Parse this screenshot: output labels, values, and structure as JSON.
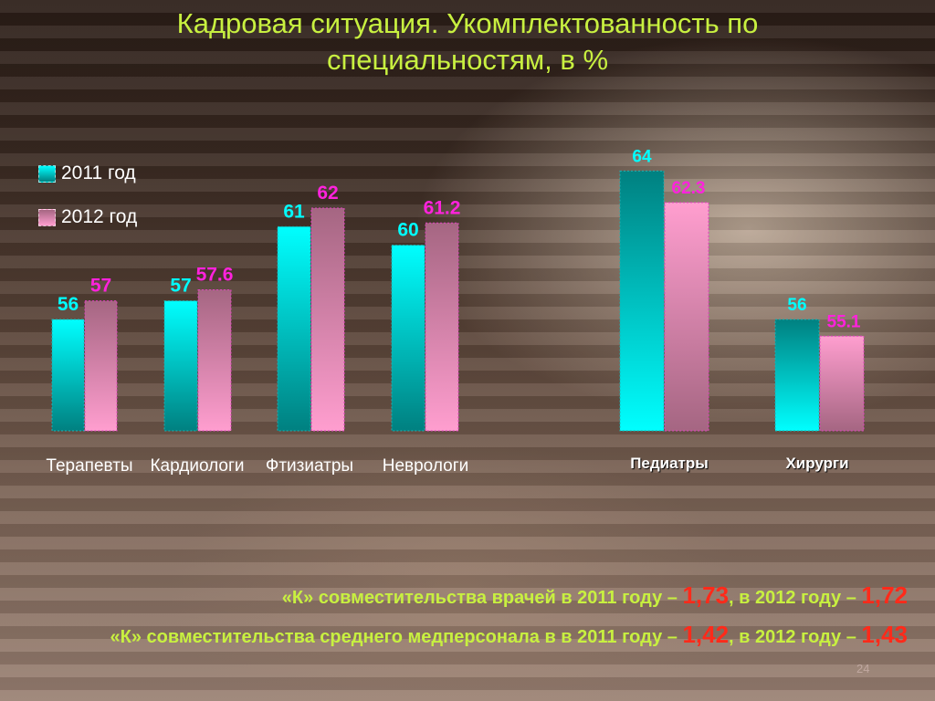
{
  "title": {
    "line1": "Кадровая ситуация. Укомплектованность по",
    "line2": "специальностям, в %"
  },
  "chart_data": {
    "type": "bar",
    "categories": [
      "Терапевты",
      "Кардиологи",
      "Фтизиатры",
      "Неврологи",
      "Педиатры",
      "Хирурги"
    ],
    "series": [
      {
        "name": "2011 год",
        "values": [
          56,
          57,
          61,
          60,
          64,
          56
        ]
      },
      {
        "name": "2012 год",
        "values": [
          57,
          57.6,
          62,
          61.2,
          62.3,
          55.1
        ]
      }
    ],
    "value_labels": {
      "2011": [
        "56",
        "57",
        "61",
        "60",
        "64",
        "56"
      ],
      "2012": [
        "57",
        "57.6",
        "62",
        "61.2",
        "62.3",
        "55.1"
      ]
    },
    "ylim": [
      50,
      65
    ],
    "grid": false,
    "legend_placement": "top-left",
    "colors": {
      "series_2011_light": "#00ffff",
      "series_2011_dark": "#008080",
      "series_2012_light": "#ff9ecf",
      "series_2012_dark": "#a56682",
      "label_2011": "#00ffff",
      "label_2012": "#ff22dd",
      "category_label": "#ffffff"
    }
  },
  "notes": {
    "line1_prefix": "«К» совместительства врачей в 2011 году – ",
    "line1_value1": "1,73",
    "line1_middle": ", в 2012 году – ",
    "line1_value2": "1,72",
    "line2_prefix": "«К» совместительства среднего медперсонала в в 2011 году – ",
    "line2_value1": "1,42",
    "line2_middle": ", в 2012 году – ",
    "line2_value2": "1,43"
  },
  "page_number": "24"
}
